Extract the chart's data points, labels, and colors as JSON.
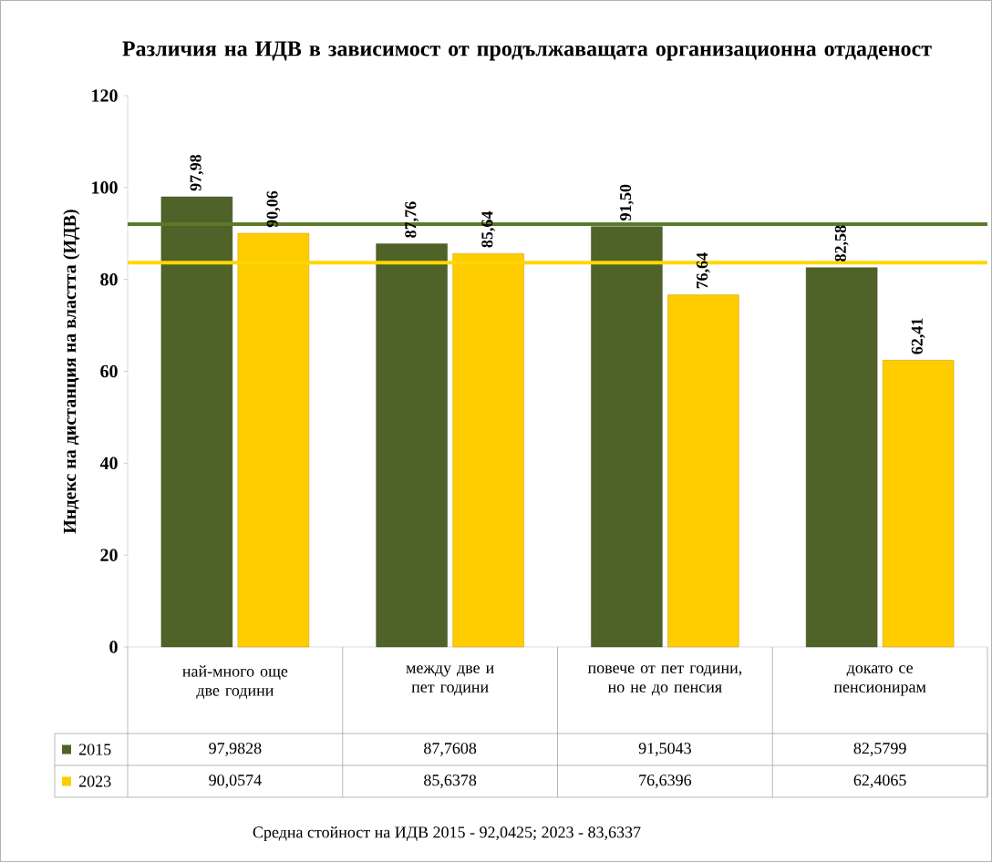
{
  "chart_data": {
    "type": "bar",
    "title": "Различия на ИДВ  в зависимост от продължаващата организационна отдаденост",
    "ylabel": "Индекс на дистанция на властта (ИДВ)",
    "categories": [
      "най-много още две години",
      "между две и пет години",
      "повече от пет години, но не до пенсия",
      "докато се пенсионирам"
    ],
    "series": [
      {
        "name": "2015",
        "color": "#4f6228",
        "values": [
          97.9828,
          87.7608,
          91.5043,
          82.5799
        ],
        "value_labels": [
          "97,98",
          "87,76",
          "91,50",
          "82,58"
        ]
      },
      {
        "name": "2023",
        "color": "#ffcc00",
        "values": [
          90.0574,
          85.6378,
          76.6396,
          62.4065
        ],
        "value_labels": [
          "90,06",
          "85,64",
          "76,64",
          "62,41"
        ]
      }
    ],
    "ylim": [
      0,
      120
    ],
    "yticks": [
      0,
      20,
      40,
      60,
      80,
      100,
      120
    ],
    "ref_lines": [
      {
        "axis": "y",
        "value": 92.0425,
        "color": "#5a7a2a"
      },
      {
        "axis": "y",
        "value": 83.6337,
        "color": "#ffd700"
      }
    ],
    "legend": "bottom left",
    "annotations": [
      "Средна  стойност на ИДВ 2015 - 92,0425; 2023 - 83,6337",
      "97,9828",
      "87,7608",
      "91,5043",
      "82,5799",
      "90,0574",
      "85,6378",
      "76,6396",
      "62,4065"
    ]
  }
}
